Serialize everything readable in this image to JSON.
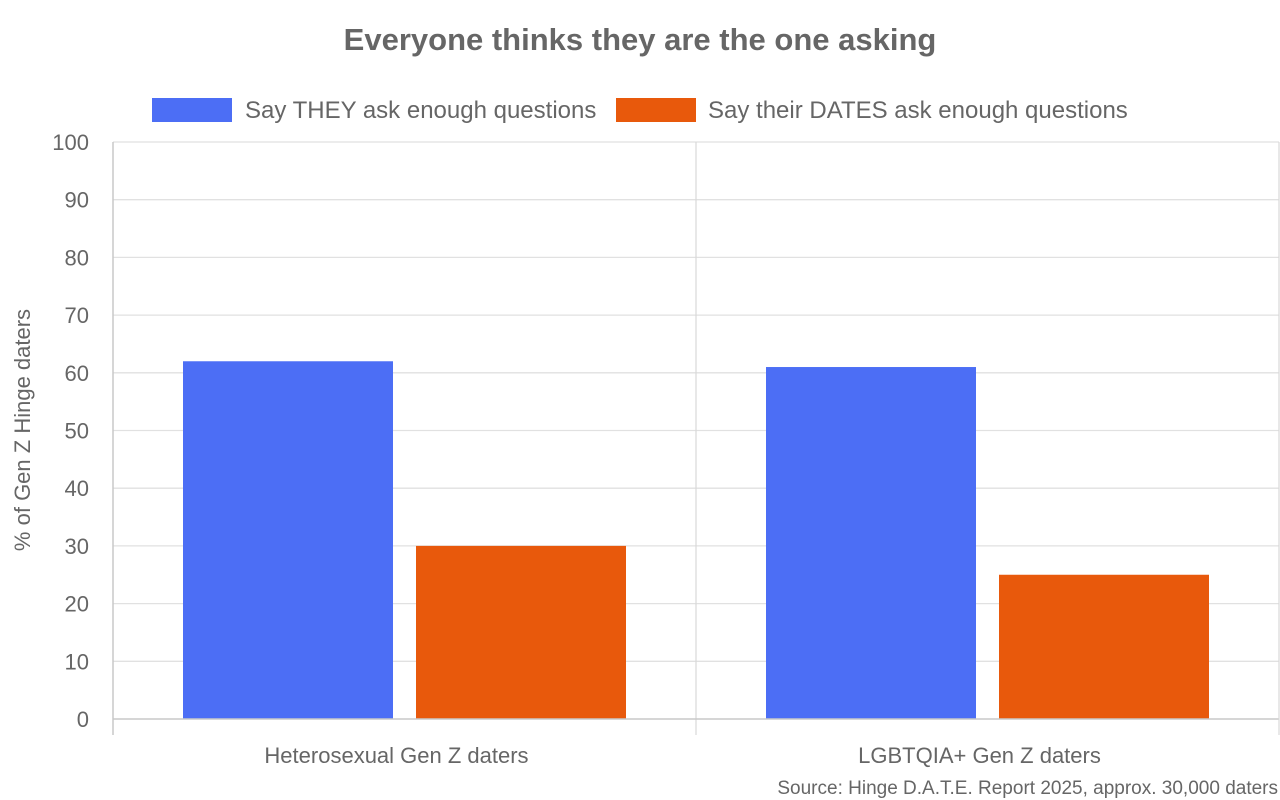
{
  "chart_data": {
    "type": "bar",
    "title": "Everyone thinks they are the one asking",
    "categories": [
      "Heterosexual Gen Z daters",
      "LGBTQIA+ Gen Z daters"
    ],
    "series": [
      {
        "name": "Say THEY ask enough questions",
        "color": "#4c6ef5",
        "values": [
          62,
          61
        ]
      },
      {
        "name": "Say their DATES ask enough questions",
        "color": "#e8590c",
        "values": [
          30,
          25
        ]
      }
    ],
    "xlabel": "",
    "ylabel": "% of Gen Z Hinge daters",
    "ylim": [
      0,
      100
    ],
    "yticks": [
      0,
      10,
      20,
      30,
      40,
      50,
      60,
      70,
      80,
      90,
      100
    ],
    "grid": true,
    "legend_position": "top",
    "source": "Source: Hinge D.A.T.E. Report 2025, approx. 30,000 daters"
  }
}
